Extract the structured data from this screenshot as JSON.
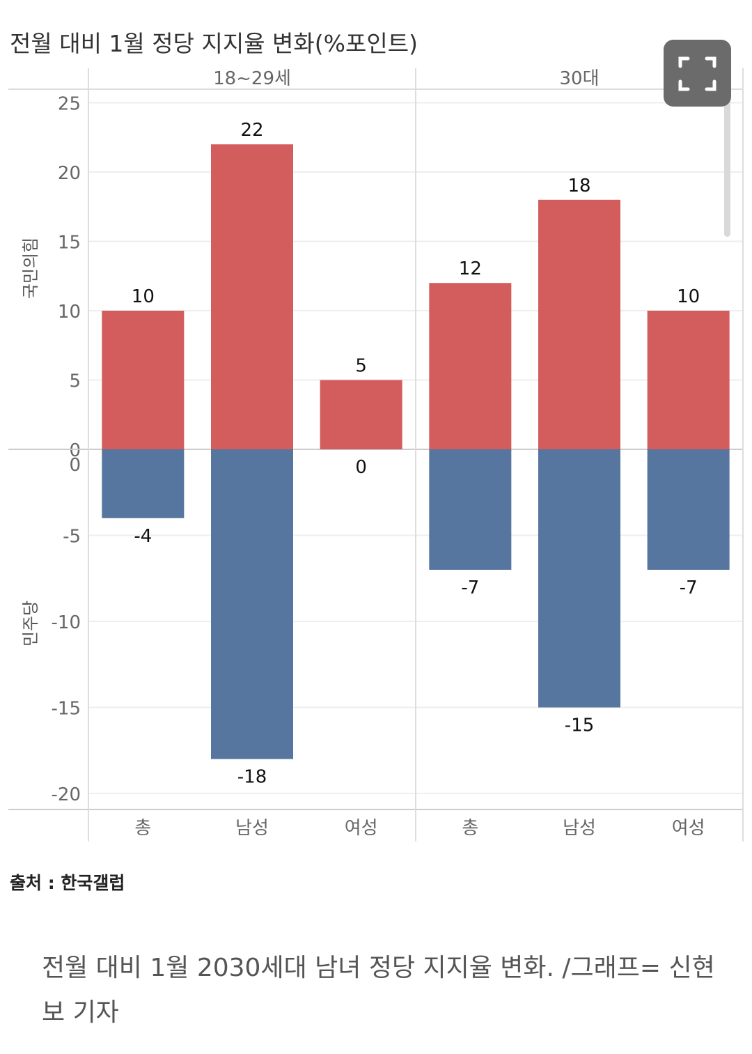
{
  "chart_data": {
    "type": "bar",
    "title": "전월 대비 1월 정당 지지율 변화(%포인트)",
    "panels": [
      {
        "name": "18~29세",
        "categories": [
          "총",
          "남성",
          "여성"
        ],
        "ppp": [
          10,
          22,
          5
        ],
        "dem": [
          -4,
          -18,
          0
        ]
      },
      {
        "name": "30대",
        "categories": [
          "총",
          "남성",
          "여성"
        ],
        "ppp": [
          12,
          18,
          10
        ],
        "dem": [
          -7,
          -15,
          -7
        ]
      }
    ],
    "series": [
      {
        "name": "국민의힘",
        "color": "#d35d5c"
      },
      {
        "name": "민주당",
        "color": "#56759f"
      }
    ],
    "upper_axis": {
      "label": "국민의힘",
      "ylim": [
        0,
        25
      ],
      "ticks": [
        25,
        20,
        15,
        10,
        5,
        0
      ]
    },
    "lower_axis": {
      "label": "민주당",
      "ylim": [
        -20,
        0
      ],
      "ticks": [
        0,
        -5,
        -10,
        -15,
        -20
      ]
    },
    "grid": true
  },
  "source": "출처 : 한국갤럽",
  "caption": "전월 대비 1월 2030세대 남녀 정당 지지율 변화. /그래프= 신현보 기자",
  "icons": {
    "expand": "expand-icon"
  }
}
